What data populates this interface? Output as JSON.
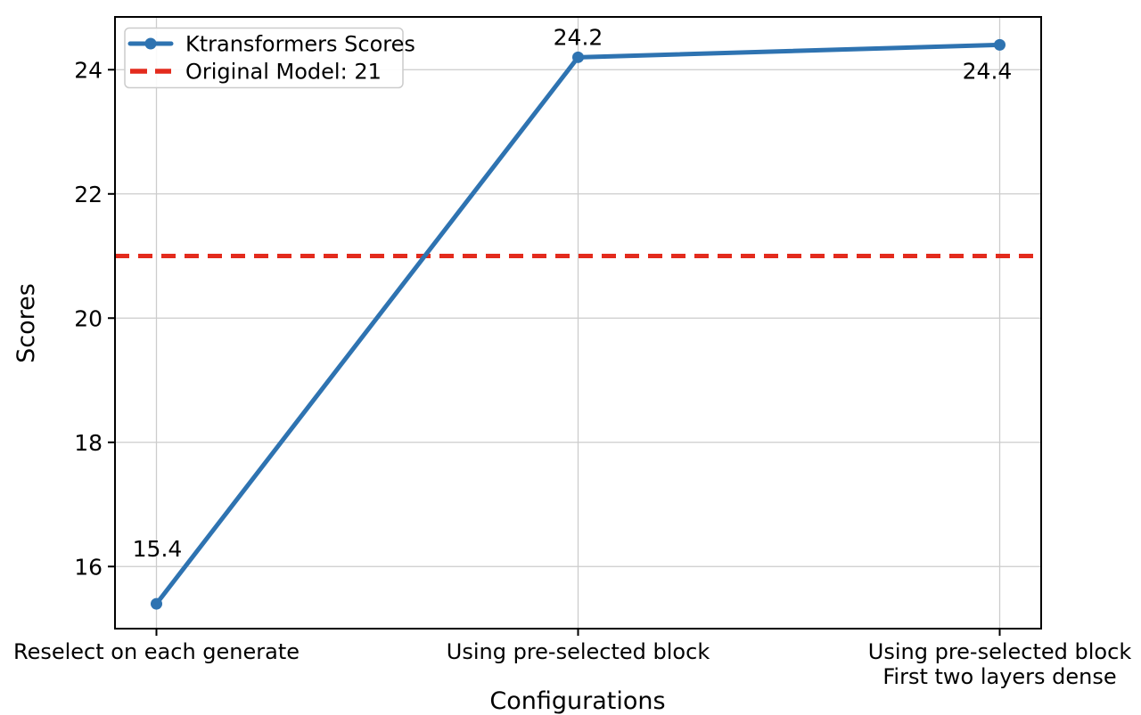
{
  "chart_data": {
    "type": "line",
    "title": "",
    "xlabel": "Configurations",
    "ylabel": "Scores",
    "categories": [
      "Reselect on each generate",
      "Using pre-selected block",
      "Using pre-selected block\nFirst two layers dense"
    ],
    "series": [
      {
        "name": "Ktransformers Scores",
        "values": [
          15.4,
          24.2,
          24.4
        ],
        "color": "#2e73b1",
        "marker": "circle",
        "line_style": "solid"
      }
    ],
    "point_labels": [
      "15.4",
      "24.2",
      "24.4"
    ],
    "reference_line": {
      "label": "Original Model: 21",
      "value": 21,
      "color": "#e32b1d",
      "line_style": "dashed"
    },
    "yticks": [
      "16",
      "18",
      "20",
      "22",
      "24"
    ],
    "ytick_values": [
      16,
      18,
      20,
      22,
      24
    ],
    "ylim": [
      15.0,
      24.85
    ],
    "grid": true,
    "grid_color": "#cccccc",
    "spine_color": "#000000",
    "legend_position": "upper-left",
    "legend": {
      "entries": [
        "Ktransformers Scores",
        "Original Model: 21"
      ]
    }
  }
}
